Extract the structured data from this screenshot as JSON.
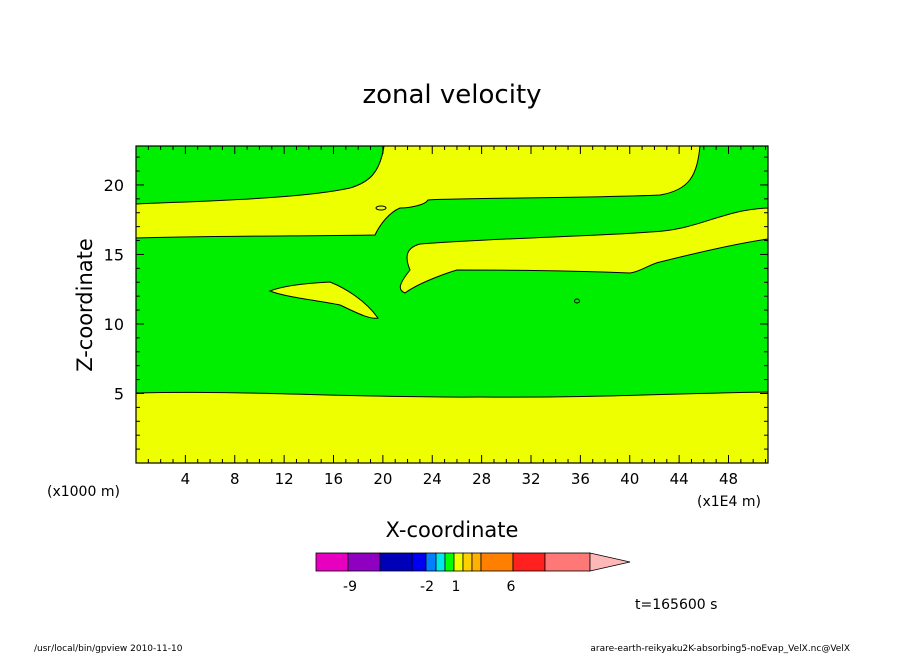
{
  "chart_data": {
    "type": "heatmap",
    "title": "zonal velocity",
    "xlabel": "X-coordinate",
    "ylabel": "Z-coordinate",
    "x_unit": "(x1E4 m)",
    "y_unit": "(x1000 m)",
    "xlim": [
      0,
      51.2
    ],
    "ylim": [
      0,
      22.8
    ],
    "x_ticks": [
      "4",
      "8",
      "12",
      "16",
      "20",
      "24",
      "28",
      "32",
      "36",
      "40",
      "44",
      "48"
    ],
    "y_ticks": [
      "5",
      "10",
      "15",
      "20"
    ],
    "colorbar": {
      "colors": [
        "#e800c0",
        "#9000c0",
        "#0000b8",
        "#0000f0",
        "#0080ff",
        "#00e8e8",
        "#00ff00",
        "#f0ff00",
        "#ffd000",
        "#ffb000",
        "#ff8000",
        "#ff2020",
        "#ff7878",
        "#ffb8b8"
      ],
      "labels": [
        "-9",
        "-2",
        "1",
        "6"
      ]
    },
    "fields": {
      "background_color": "#00ee00",
      "positive_color": "#eeff00",
      "regions": [
        {
          "name": "lower-yellow-band",
          "z_range": [
            0,
            5.0
          ]
        },
        {
          "name": "upper-yellow-band",
          "z_range": [
            16.3,
            19.0
          ]
        },
        {
          "name": "middle-yellow-band",
          "z_range": [
            13.8,
            16.3
          ]
        },
        {
          "name": "small-yellow-lens",
          "z_range": [
            10.5,
            13.0
          ]
        }
      ]
    },
    "time_label": "t=165600 s"
  },
  "footer": {
    "left": "/usr/local/bin/gpview   2010-11-10",
    "right": "arare-earth-reikyaku2K-absorbing5-noEvap_VelX.nc@VelX"
  }
}
